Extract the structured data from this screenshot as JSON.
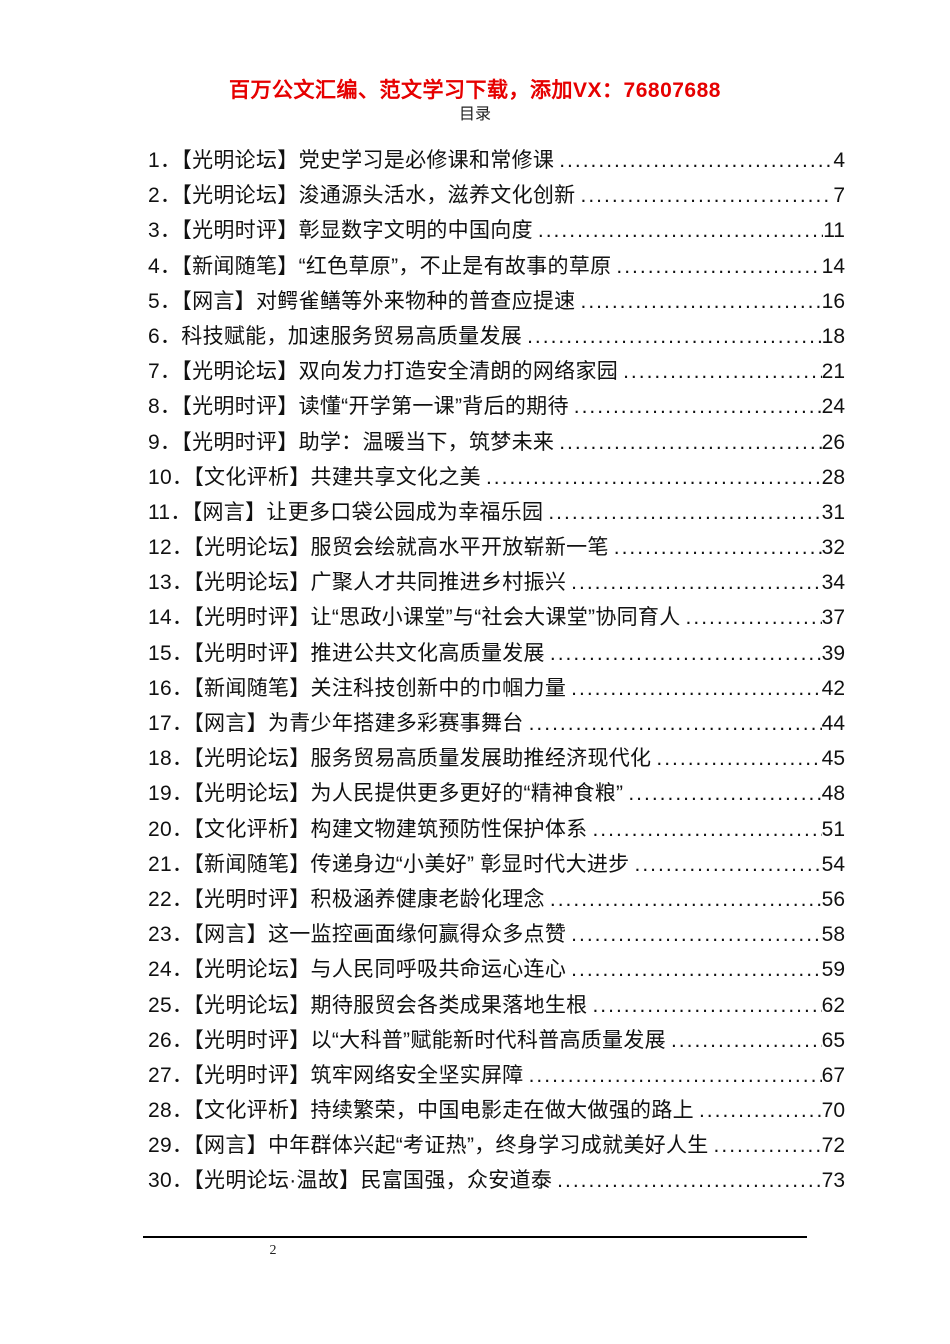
{
  "header": {
    "promo_text": "百万公文汇编、范文学习下载，添加VX：76807688",
    "promo_color": "#e60000",
    "toc_heading": "目录"
  },
  "toc": {
    "items": [
      {
        "label": "1．【光明论坛】党史学习是必修课和常修课",
        "page": "4"
      },
      {
        "label": "2．【光明论坛】浚通源头活水，滋养文化创新",
        "page": "7"
      },
      {
        "label": "3．【光明时评】彰显数字文明的中国向度",
        "page": "11"
      },
      {
        "label": "4．【新闻随笔】“红色草原”，不止是有故事的草原",
        "page": "14"
      },
      {
        "label": "5．【网言】对鳄雀鳝等外来物种的普查应提速",
        "page": "16"
      },
      {
        "label": "6．科技赋能，加速服务贸易高质量发展",
        "page": "18"
      },
      {
        "label": "7．【光明论坛】双向发力打造安全清朗的网络家园",
        "page": "21"
      },
      {
        "label": "8．【光明时评】读懂“开学第一课”背后的期待",
        "page": "24"
      },
      {
        "label": "9．【光明时评】助学：温暖当下，筑梦未来",
        "page": "26"
      },
      {
        "label": "10．【文化评析】共建共享文化之美",
        "page": "28"
      },
      {
        "label": "11．【网言】让更多口袋公园成为幸福乐园",
        "page": "31"
      },
      {
        "label": "12．【光明论坛】服贸会绘就高水平开放崭新一笔",
        "page": "32"
      },
      {
        "label": "13．【光明论坛】广聚人才共同推进乡村振兴",
        "page": "34"
      },
      {
        "label": "14．【光明时评】让“思政小课堂”与“社会大课堂”协同育人",
        "page": "37"
      },
      {
        "label": "15．【光明时评】推进公共文化高质量发展",
        "page": "39"
      },
      {
        "label": "16．【新闻随笔】关注科技创新中的巾帼力量",
        "page": "42"
      },
      {
        "label": "17．【网言】为青少年搭建多彩赛事舞台",
        "page": "44"
      },
      {
        "label": "18．【光明论坛】服务贸易高质量发展助推经济现代化",
        "page": "45"
      },
      {
        "label": "19．【光明论坛】为人民提供更多更好的“精神食粮”",
        "page": "48"
      },
      {
        "label": "20．【文化评析】构建文物建筑预防性保护体系",
        "page": "51"
      },
      {
        "label": "21．【新闻随笔】传递身边“小美好” 彰显时代大进步",
        "page": "54"
      },
      {
        "label": "22．【光明时评】积极涵养健康老龄化理念",
        "page": "56"
      },
      {
        "label": "23．【网言】这一监控画面缘何赢得众多点赞",
        "page": "58"
      },
      {
        "label": "24．【光明论坛】与人民同呼吸共命运心连心",
        "page": "59"
      },
      {
        "label": "25．【光明论坛】期待服贸会各类成果落地生根",
        "page": "62"
      },
      {
        "label": "26．【光明时评】以“大科普”赋能新时代科普高质量发展",
        "page": "65"
      },
      {
        "label": "27．【光明时评】筑牢网络安全坚实屏障",
        "page": "67"
      },
      {
        "label": "28．【文化评析】持续繁荣，中国电影走在做大做强的路上",
        "page": "70"
      },
      {
        "label": "29．【网言】中年群体兴起“考证热”，终身学习成就美好人生",
        "page": "72"
      },
      {
        "label": "30．【光明论坛·温故】民富国强，众安道泰",
        "page": "73"
      }
    ]
  },
  "footer": {
    "page_number": "2"
  }
}
